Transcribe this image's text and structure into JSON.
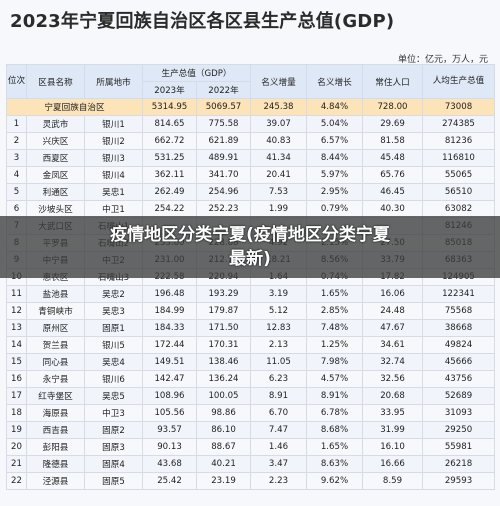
{
  "title": "2023年宁夏回族自治区各区县生产总值(GDP)",
  "unit": "单位：亿元，万人，元",
  "headers": {
    "rank": "位次",
    "county": "区县名称",
    "city": "所属地市",
    "gdp": "生产总值（GDP）",
    "y2023": "2023年",
    "y2022": "2022年",
    "growth_amount": "名义增量",
    "growth_rate": "名义增长",
    "population": "常住人口",
    "per_capita": "人均生产总值"
  },
  "total_row": {
    "name": "宁夏回族自治区",
    "y2023": "5314.95",
    "y2022": "5069.57",
    "growth_amount": "245.38",
    "growth_rate": "4.84%",
    "population": "728.00",
    "per_capita": "73008"
  },
  "rows": [
    {
      "rank": "1",
      "county": "灵武市",
      "city": "银川1",
      "y2023": "814.65",
      "y2022": "775.58",
      "inc": "39.07",
      "rate": "5.04%",
      "pop": "29.69",
      "pc": "274385"
    },
    {
      "rank": "2",
      "county": "兴庆区",
      "city": "银川2",
      "y2023": "662.72",
      "y2022": "621.89",
      "inc": "40.83",
      "rate": "6.57%",
      "pop": "81.58",
      "pc": "81236"
    },
    {
      "rank": "3",
      "county": "西夏区",
      "city": "银川3",
      "y2023": "531.25",
      "y2022": "489.91",
      "inc": "41.34",
      "rate": "8.44%",
      "pop": "45.48",
      "pc": "116810"
    },
    {
      "rank": "4",
      "county": "金凤区",
      "city": "银川4",
      "y2023": "362.11",
      "y2022": "341.70",
      "inc": "20.41",
      "rate": "5.97%",
      "pop": "65.76",
      "pc": "55065"
    },
    {
      "rank": "5",
      "county": "利通区",
      "city": "吴忠1",
      "y2023": "262.49",
      "y2022": "254.96",
      "inc": "7.53",
      "rate": "2.95%",
      "pop": "46.45",
      "pc": "56510"
    },
    {
      "rank": "6",
      "county": "沙坡头区",
      "city": "中卫1",
      "y2023": "254.22",
      "y2022": "252.23",
      "inc": "1.99",
      "rate": "0.79%",
      "pop": "40.30",
      "pc": "63082"
    },
    {
      "rank": "7",
      "county": "大武口区",
      "city": "石嘴山1",
      "y2023": "",
      "y2022": "",
      "inc": "",
      "rate": "",
      "pop": "",
      "pc": "81246"
    },
    {
      "rank": "8",
      "county": "平罗县",
      "city": "石嘴山2",
      "y2023": "233.80",
      "y2022": "228.88",
      "inc": "4.92",
      "rate": "2.15%",
      "pop": "27.50",
      "pc": "85018"
    },
    {
      "rank": "9",
      "county": "中宁县",
      "city": "中卫2",
      "y2023": "231.00",
      "y2022": "212.79",
      "inc": "18.21",
      "rate": "8.56%",
      "pop": "33.79",
      "pc": "68363"
    },
    {
      "rank": "10",
      "county": "惠农区",
      "city": "石嘴山3",
      "y2023": "222.58",
      "y2022": "220.94",
      "inc": "1.64",
      "rate": "0.74%",
      "pop": "17.82",
      "pc": "124905"
    },
    {
      "rank": "11",
      "county": "盐池县",
      "city": "吴忠2",
      "y2023": "196.48",
      "y2022": "193.29",
      "inc": "3.19",
      "rate": "1.65%",
      "pop": "16.06",
      "pc": "122341"
    },
    {
      "rank": "12",
      "county": "青铜峡市",
      "city": "吴忠3",
      "y2023": "184.99",
      "y2022": "179.87",
      "inc": "5.12",
      "rate": "2.85%",
      "pop": "24.48",
      "pc": "75568"
    },
    {
      "rank": "13",
      "county": "原州区",
      "city": "固原1",
      "y2023": "184.33",
      "y2022": "171.50",
      "inc": "12.83",
      "rate": "7.48%",
      "pop": "47.67",
      "pc": "38668"
    },
    {
      "rank": "14",
      "county": "贺兰县",
      "city": "银川5",
      "y2023": "172.44",
      "y2022": "170.31",
      "inc": "2.13",
      "rate": "1.25%",
      "pop": "34.61",
      "pc": "49824"
    },
    {
      "rank": "15",
      "county": "同心县",
      "city": "吴忠4",
      "y2023": "149.51",
      "y2022": "138.46",
      "inc": "11.05",
      "rate": "7.98%",
      "pop": "32.74",
      "pc": "45666"
    },
    {
      "rank": "16",
      "county": "永宁县",
      "city": "银川6",
      "y2023": "142.47",
      "y2022": "136.24",
      "inc": "6.23",
      "rate": "4.57%",
      "pop": "32.56",
      "pc": "43756"
    },
    {
      "rank": "17",
      "county": "红寺堡区",
      "city": "吴忠5",
      "y2023": "108.96",
      "y2022": "100.05",
      "inc": "8.91",
      "rate": "8.91%",
      "pop": "20.68",
      "pc": "52689"
    },
    {
      "rank": "18",
      "county": "海原县",
      "city": "中卫3",
      "y2023": "105.56",
      "y2022": "98.86",
      "inc": "6.70",
      "rate": "6.78%",
      "pop": "33.95",
      "pc": "31093"
    },
    {
      "rank": "19",
      "county": "西吉县",
      "city": "固原2",
      "y2023": "93.57",
      "y2022": "86.10",
      "inc": "7.47",
      "rate": "8.68%",
      "pop": "31.99",
      "pc": "29250"
    },
    {
      "rank": "20",
      "county": "彭阳县",
      "city": "固原3",
      "y2023": "90.13",
      "y2022": "88.67",
      "inc": "1.46",
      "rate": "1.65%",
      "pop": "16.10",
      "pc": "55981"
    },
    {
      "rank": "21",
      "county": "隆德县",
      "city": "固原4",
      "y2023": "43.68",
      "y2022": "40.21",
      "inc": "3.47",
      "rate": "8.63%",
      "pop": "16.66",
      "pc": "26218"
    },
    {
      "rank": "22",
      "county": "泾源县",
      "city": "固原5",
      "y2023": "25.42",
      "y2022": "23.19",
      "inc": "2.23",
      "rate": "9.62%",
      "pop": "8.59",
      "pc": "29593"
    }
  ],
  "overlay": {
    "line1": "疫情地区分类宁夏(疫情地区分类宁夏",
    "line2": "最新)"
  }
}
